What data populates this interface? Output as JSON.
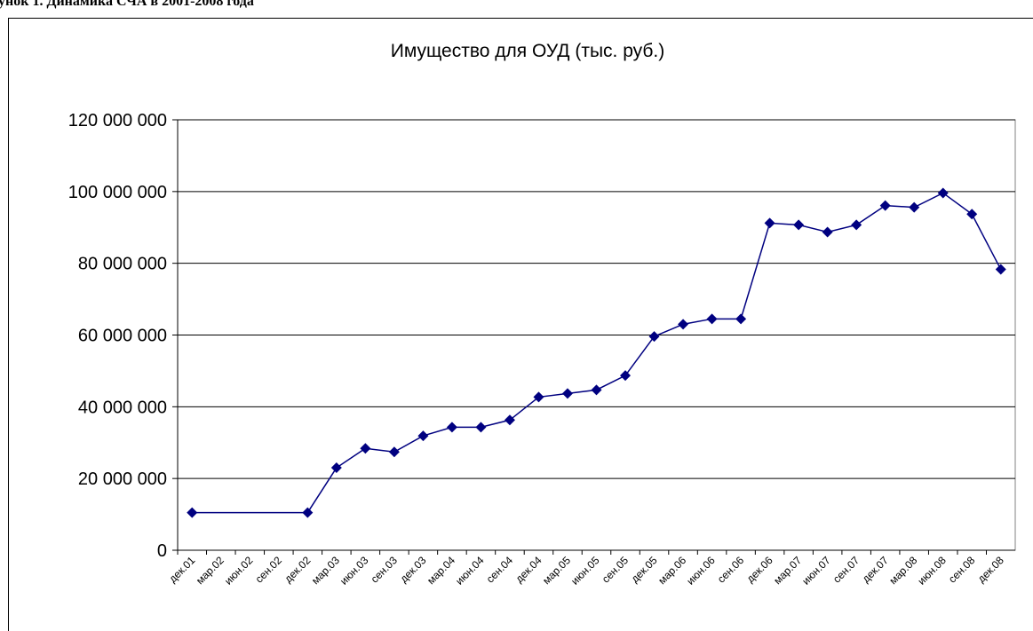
{
  "caption": "унок 1. Динамика СЧА в 2001-2008 года",
  "chart_data": {
    "type": "line",
    "title": "Имущество для ОУД (тыс. руб.)",
    "categories": [
      "дек.01",
      "мар.02",
      "июн.02",
      "сен.02",
      "дек.02",
      "мар.03",
      "июн.03",
      "сен.03",
      "дек.03",
      "мар.04",
      "июн.04",
      "сен.04",
      "дек.04",
      "мар.05",
      "июн.05",
      "сен.05",
      "дек.05",
      "мар.06",
      "июн.06",
      "сен.06",
      "дек.06",
      "мар.07",
      "июн.07",
      "сен.07",
      "дек.07",
      "мар.08",
      "июн.08",
      "сен.08",
      "дек.08"
    ],
    "series": [
      {
        "name": "Имущество для ОУД",
        "color": "#000080",
        "values": [
          10500000,
          null,
          null,
          null,
          10500000,
          23000000,
          28400000,
          27400000,
          31900000,
          34300000,
          34300000,
          36300000,
          42700000,
          43700000,
          44700000,
          48700000,
          59600000,
          63000000,
          64500000,
          64500000,
          91200000,
          90700000,
          88700000,
          90700000,
          96100000,
          95600000,
          99600000,
          93700000,
          78300000
        ]
      }
    ],
    "span_gaps": true,
    "ylim": [
      0,
      120000000
    ],
    "yticks": [
      0,
      {
        "value": 20000000,
        "label": "20 000 000"
      },
      {
        "value": 40000000,
        "label": "40 000 000"
      },
      {
        "value": 60000000,
        "label": "60 000 000"
      },
      {
        "value": 80000000,
        "label": "80 000 000"
      },
      {
        "value": 100000000,
        "label": "100 000 000"
      },
      {
        "value": 120000000,
        "label": "120 000 000"
      }
    ],
    "grid": true
  }
}
